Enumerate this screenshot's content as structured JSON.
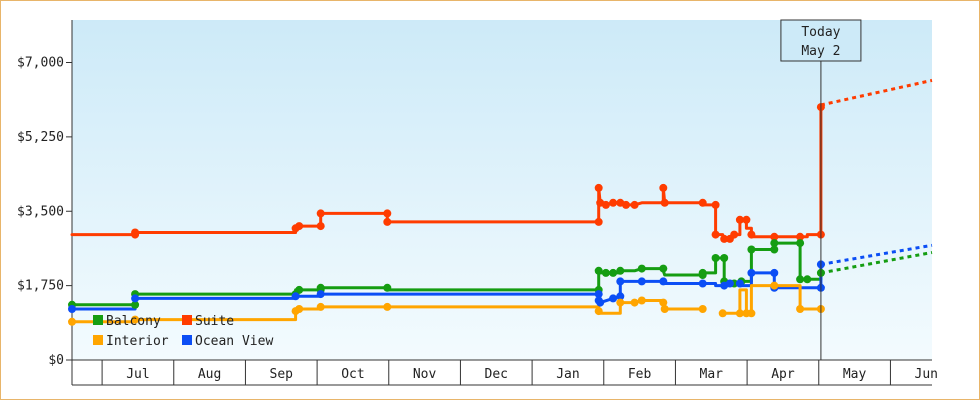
{
  "chart_data": {
    "type": "line",
    "y_axis": {
      "ylim": [
        0,
        8000
      ],
      "ticks": [
        {
          "value": 0,
          "label": "$0"
        },
        {
          "value": 1750,
          "label": "$1,750"
        },
        {
          "value": 3500,
          "label": "$3,500"
        },
        {
          "value": 5250,
          "label": "$5,250"
        },
        {
          "value": 7000,
          "label": "$7,000"
        }
      ]
    },
    "x_axis": {
      "xlim": [
        -0.42,
        11.58
      ],
      "month_labels": [
        "Jul",
        "Aug",
        "Sep",
        "Oct",
        "Nov",
        "Dec",
        "Jan",
        "Feb",
        "Mar",
        "Apr",
        "May",
        "Jun"
      ],
      "month_centers": [
        0.5,
        1.5,
        2.5,
        3.5,
        4.5,
        5.5,
        6.5,
        7.5,
        8.5,
        9.5,
        10.5,
        11.5
      ]
    },
    "today": {
      "x": 10.03,
      "line1": "Today",
      "line2": "May 2"
    },
    "legend": {
      "placement": "bottom-left",
      "items": [
        {
          "label": "Balcony",
          "color": "#159d12"
        },
        {
          "label": "Suite",
          "color": "#ff3c00"
        },
        {
          "label": "Interior",
          "color": "#ffa500"
        },
        {
          "label": "Ocean View",
          "color": "#0b4ef5"
        }
      ]
    },
    "series": [
      {
        "name": "Suite",
        "color": "#ff3c00",
        "points": [
          [
            -0.42,
            2950
          ],
          [
            0.46,
            2950
          ],
          [
            0.46,
            3000
          ],
          [
            2.7,
            3000
          ],
          [
            2.7,
            3100
          ],
          [
            2.75,
            3150
          ],
          [
            3.05,
            3150
          ],
          [
            3.05,
            3450
          ],
          [
            3.98,
            3450
          ],
          [
            3.98,
            3250
          ],
          [
            6.93,
            3250
          ],
          [
            6.93,
            4050
          ],
          [
            6.95,
            3700
          ],
          [
            7.03,
            3650
          ],
          [
            7.13,
            3700
          ],
          [
            7.23,
            3700
          ],
          [
            7.31,
            3650
          ],
          [
            7.43,
            3650
          ],
          [
            7.53,
            3700
          ],
          [
            7.83,
            3700
          ],
          [
            7.83,
            4050
          ],
          [
            7.85,
            3700
          ],
          [
            8.38,
            3700
          ],
          [
            8.4,
            3650
          ],
          [
            8.56,
            3650
          ],
          [
            8.56,
            2950
          ],
          [
            8.66,
            2950
          ],
          [
            8.68,
            2850
          ],
          [
            8.76,
            2850
          ],
          [
            8.82,
            2950
          ],
          [
            8.9,
            2950
          ],
          [
            8.9,
            3300
          ],
          [
            8.99,
            3300
          ],
          [
            8.99,
            3100
          ],
          [
            9.06,
            3100
          ],
          [
            9.06,
            2950
          ],
          [
            9.08,
            2900
          ],
          [
            9.84,
            2900
          ],
          [
            9.84,
            2950
          ],
          [
            10.03,
            2950
          ],
          [
            10.03,
            5950
          ]
        ],
        "projection": [
          [
            10.03,
            6000
          ],
          [
            11.58,
            6580
          ]
        ]
      },
      {
        "name": "Balcony",
        "color": "#159d12",
        "points": [
          [
            -0.42,
            1300
          ],
          [
            0.46,
            1300
          ],
          [
            0.46,
            1550
          ],
          [
            2.7,
            1550
          ],
          [
            2.7,
            1650
          ],
          [
            3.05,
            1650
          ],
          [
            3.05,
            1700
          ],
          [
            3.98,
            1700
          ],
          [
            3.98,
            1650
          ],
          [
            6.93,
            1650
          ],
          [
            6.93,
            2100
          ],
          [
            6.95,
            2050
          ],
          [
            7.23,
            2050
          ],
          [
            7.23,
            2100
          ],
          [
            7.43,
            2100
          ],
          [
            7.53,
            2150
          ],
          [
            7.83,
            2150
          ],
          [
            7.83,
            2100
          ],
          [
            7.85,
            2000
          ],
          [
            8.38,
            2000
          ],
          [
            8.38,
            2050
          ],
          [
            8.56,
            2050
          ],
          [
            8.56,
            2400
          ],
          [
            8.68,
            2400
          ],
          [
            8.68,
            1850
          ],
          [
            8.76,
            1850
          ],
          [
            8.82,
            1800
          ],
          [
            8.92,
            1850
          ],
          [
            9.06,
            1850
          ],
          [
            9.06,
            2600
          ],
          [
            9.38,
            2600
          ],
          [
            9.38,
            2750
          ],
          [
            9.74,
            2750
          ],
          [
            9.74,
            1900
          ],
          [
            9.84,
            1900
          ],
          [
            10.03,
            1900
          ],
          [
            10.03,
            2050
          ]
        ],
        "projection": [
          [
            10.03,
            2050
          ],
          [
            11.58,
            2530
          ]
        ]
      },
      {
        "name": "Ocean View",
        "color": "#0b4ef5",
        "points": [
          [
            -0.42,
            1200
          ],
          [
            0.46,
            1200
          ],
          [
            0.46,
            1450
          ],
          [
            2.7,
            1450
          ],
          [
            2.7,
            1500
          ],
          [
            3.05,
            1500
          ],
          [
            3.05,
            1550
          ],
          [
            3.98,
            1550
          ],
          [
            3.98,
            1550
          ],
          [
            6.93,
            1550
          ],
          [
            6.93,
            1400
          ],
          [
            6.95,
            1350
          ],
          [
            7.13,
            1450
          ],
          [
            7.23,
            1500
          ],
          [
            7.23,
            1850
          ],
          [
            7.43,
            1850
          ],
          [
            7.53,
            1850
          ],
          [
            7.83,
            1850
          ],
          [
            7.85,
            1800
          ],
          [
            8.38,
            1800
          ],
          [
            8.38,
            1800
          ],
          [
            8.56,
            1800
          ],
          [
            8.56,
            1750
          ],
          [
            8.68,
            1750
          ],
          [
            8.76,
            1800
          ],
          [
            8.9,
            1800
          ],
          [
            8.9,
            1750
          ],
          [
            9.06,
            1750
          ],
          [
            9.06,
            2050
          ],
          [
            9.38,
            2050
          ],
          [
            9.38,
            1700
          ],
          [
            10.03,
            1700
          ],
          [
            10.03,
            2250
          ]
        ],
        "projection": [
          [
            10.03,
            2250
          ],
          [
            11.58,
            2700
          ]
        ]
      },
      {
        "name": "Interior",
        "color": "#ffa500",
        "points": [
          [
            -0.42,
            900
          ],
          [
            0.46,
            900
          ],
          [
            0.46,
            950
          ],
          [
            2.7,
            950
          ],
          [
            2.7,
            1150
          ],
          [
            2.75,
            1200
          ],
          [
            3.05,
            1200
          ],
          [
            3.05,
            1250
          ],
          [
            3.98,
            1250
          ],
          [
            3.98,
            1250
          ],
          [
            6.93,
            1250
          ],
          [
            6.93,
            1150
          ],
          [
            6.95,
            1100
          ],
          [
            7.23,
            1100
          ],
          [
            7.23,
            1350
          ],
          [
            7.43,
            1350
          ],
          [
            7.53,
            1400
          ],
          [
            7.83,
            1400
          ],
          [
            7.83,
            1350
          ],
          [
            7.85,
            1200
          ],
          [
            8.38,
            1200
          ]
        ]
      },
      {
        "name": "Interior",
        "color": "#ffa500",
        "points": [
          [
            8.66,
            1100
          ],
          [
            8.9,
            1100
          ],
          [
            8.9,
            1650
          ],
          [
            8.99,
            1650
          ],
          [
            8.99,
            1100
          ],
          [
            9.06,
            1100
          ],
          [
            9.06,
            1750
          ],
          [
            9.38,
            1750
          ],
          [
            9.74,
            1750
          ],
          [
            9.74,
            1200
          ],
          [
            9.84,
            1200
          ],
          [
            10.03,
            1200
          ]
        ]
      }
    ],
    "markers": [
      {
        "series": "Suite",
        "x": 0.46,
        "y": 2950
      },
      {
        "series": "Suite",
        "x": 0.46,
        "y": 3000
      },
      {
        "series": "Suite",
        "x": 2.7,
        "y": 3100
      },
      {
        "series": "Suite",
        "x": 2.75,
        "y": 3150
      },
      {
        "series": "Suite",
        "x": 3.05,
        "y": 3150
      },
      {
        "series": "Suite",
        "x": 3.05,
        "y": 3450
      },
      {
        "series": "Suite",
        "x": 3.98,
        "y": 3450
      },
      {
        "series": "Suite",
        "x": 3.98,
        "y": 3250
      },
      {
        "series": "Suite",
        "x": 6.93,
        "y": 3250
      },
      {
        "series": "Suite",
        "x": 6.93,
        "y": 4050
      },
      {
        "series": "Suite",
        "x": 6.95,
        "y": 3700
      },
      {
        "series": "Suite",
        "x": 7.03,
        "y": 3650
      },
      {
        "series": "Suite",
        "x": 7.13,
        "y": 3700
      },
      {
        "series": "Suite",
        "x": 7.23,
        "y": 3700
      },
      {
        "series": "Suite",
        "x": 7.31,
        "y": 3650
      },
      {
        "series": "Suite",
        "x": 7.43,
        "y": 3650
      },
      {
        "series": "Suite",
        "x": 7.83,
        "y": 4050
      },
      {
        "series": "Suite",
        "x": 7.85,
        "y": 3700
      },
      {
        "series": "Suite",
        "x": 8.38,
        "y": 3700
      },
      {
        "series": "Suite",
        "x": 8.56,
        "y": 3650
      },
      {
        "series": "Suite",
        "x": 8.56,
        "y": 2950
      },
      {
        "series": "Suite",
        "x": 8.68,
        "y": 2850
      },
      {
        "series": "Suite",
        "x": 8.76,
        "y": 2850
      },
      {
        "series": "Suite",
        "x": 8.82,
        "y": 2950
      },
      {
        "series": "Suite",
        "x": 8.9,
        "y": 3300
      },
      {
        "series": "Suite",
        "x": 8.99,
        "y": 3300
      },
      {
        "series": "Suite",
        "x": 9.06,
        "y": 2950
      },
      {
        "series": "Suite",
        "x": 9.38,
        "y": 2900
      },
      {
        "series": "Suite",
        "x": 9.74,
        "y": 2900
      },
      {
        "series": "Suite",
        "x": 10.03,
        "y": 2950
      },
      {
        "series": "Suite",
        "x": 10.03,
        "y": 5950
      },
      {
        "series": "Balcony",
        "x": -0.42,
        "y": 1300
      },
      {
        "series": "Balcony",
        "x": 0.46,
        "y": 1300
      },
      {
        "series": "Balcony",
        "x": 0.46,
        "y": 1550
      },
      {
        "series": "Balcony",
        "x": 2.7,
        "y": 1550
      },
      {
        "series": "Balcony",
        "x": 2.75,
        "y": 1650
      },
      {
        "series": "Balcony",
        "x": 3.05,
        "y": 1650
      },
      {
        "series": "Balcony",
        "x": 3.05,
        "y": 1700
      },
      {
        "series": "Balcony",
        "x": 3.98,
        "y": 1700
      },
      {
        "series": "Balcony",
        "x": 6.93,
        "y": 1650
      },
      {
        "series": "Balcony",
        "x": 6.93,
        "y": 2100
      },
      {
        "series": "Balcony",
        "x": 7.03,
        "y": 2050
      },
      {
        "series": "Balcony",
        "x": 7.13,
        "y": 2050
      },
      {
        "series": "Balcony",
        "x": 7.23,
        "y": 2100
      },
      {
        "series": "Balcony",
        "x": 7.53,
        "y": 2150
      },
      {
        "series": "Balcony",
        "x": 7.83,
        "y": 2150
      },
      {
        "series": "Balcony",
        "x": 8.38,
        "y": 2000
      },
      {
        "series": "Balcony",
        "x": 8.38,
        "y": 2050
      },
      {
        "series": "Balcony",
        "x": 8.56,
        "y": 2400
      },
      {
        "series": "Balcony",
        "x": 8.68,
        "y": 2400
      },
      {
        "series": "Balcony",
        "x": 8.68,
        "y": 1850
      },
      {
        "series": "Balcony",
        "x": 8.82,
        "y": 1800
      },
      {
        "series": "Balcony",
        "x": 8.92,
        "y": 1850
      },
      {
        "series": "Balcony",
        "x": 9.06,
        "y": 2600
      },
      {
        "series": "Balcony",
        "x": 9.38,
        "y": 2600
      },
      {
        "series": "Balcony",
        "x": 9.38,
        "y": 2750
      },
      {
        "series": "Balcony",
        "x": 9.74,
        "y": 2750
      },
      {
        "series": "Balcony",
        "x": 9.74,
        "y": 1900
      },
      {
        "series": "Balcony",
        "x": 9.84,
        "y": 1900
      },
      {
        "series": "Balcony",
        "x": 10.03,
        "y": 2050
      },
      {
        "series": "Ocean View",
        "x": -0.42,
        "y": 1200
      },
      {
        "series": "Ocean View",
        "x": 0.46,
        "y": 1450
      },
      {
        "series": "Ocean View",
        "x": 2.7,
        "y": 1500
      },
      {
        "series": "Ocean View",
        "x": 3.05,
        "y": 1550
      },
      {
        "series": "Ocean View",
        "x": 6.93,
        "y": 1550
      },
      {
        "series": "Ocean View",
        "x": 6.93,
        "y": 1400
      },
      {
        "series": "Ocean View",
        "x": 6.95,
        "y": 1350
      },
      {
        "series": "Ocean View",
        "x": 7.13,
        "y": 1450
      },
      {
        "series": "Ocean View",
        "x": 7.23,
        "y": 1500
      },
      {
        "series": "Ocean View",
        "x": 7.23,
        "y": 1850
      },
      {
        "series": "Ocean View",
        "x": 7.53,
        "y": 1850
      },
      {
        "series": "Ocean View",
        "x": 7.83,
        "y": 1850
      },
      {
        "series": "Ocean View",
        "x": 8.38,
        "y": 1800
      },
      {
        "series": "Ocean View",
        "x": 8.68,
        "y": 1750
      },
      {
        "series": "Ocean View",
        "x": 8.76,
        "y": 1800
      },
      {
        "series": "Ocean View",
        "x": 8.9,
        "y": 1800
      },
      {
        "series": "Ocean View",
        "x": 9.06,
        "y": 2050
      },
      {
        "series": "Ocean View",
        "x": 9.38,
        "y": 2050
      },
      {
        "series": "Ocean View",
        "x": 9.38,
        "y": 1700
      },
      {
        "series": "Ocean View",
        "x": 10.03,
        "y": 1700
      },
      {
        "series": "Ocean View",
        "x": 10.03,
        "y": 2250
      },
      {
        "series": "Interior",
        "x": -0.42,
        "y": 900
      },
      {
        "series": "Interior",
        "x": 0.46,
        "y": 950
      },
      {
        "series": "Interior",
        "x": 2.7,
        "y": 1150
      },
      {
        "series": "Interior",
        "x": 2.75,
        "y": 1200
      },
      {
        "series": "Interior",
        "x": 3.05,
        "y": 1250
      },
      {
        "series": "Interior",
        "x": 3.98,
        "y": 1250
      },
      {
        "series": "Interior",
        "x": 6.93,
        "y": 1150
      },
      {
        "series": "Interior",
        "x": 7.23,
        "y": 1350
      },
      {
        "series": "Interior",
        "x": 7.43,
        "y": 1350
      },
      {
        "series": "Interior",
        "x": 7.53,
        "y": 1400
      },
      {
        "series": "Interior",
        "x": 7.83,
        "y": 1350
      },
      {
        "series": "Interior",
        "x": 7.85,
        "y": 1200
      },
      {
        "series": "Interior",
        "x": 8.38,
        "y": 1200
      },
      {
        "series": "Interior",
        "x": 8.66,
        "y": 1100
      },
      {
        "series": "Interior",
        "x": 8.9,
        "y": 1100
      },
      {
        "series": "Interior",
        "x": 8.99,
        "y": 1100
      },
      {
        "series": "Interior",
        "x": 9.06,
        "y": 1100
      },
      {
        "series": "Interior",
        "x": 9.38,
        "y": 1750
      },
      {
        "series": "Interior",
        "x": 9.74,
        "y": 1200
      },
      {
        "series": "Interior",
        "x": 10.03,
        "y": 1200
      }
    ]
  }
}
